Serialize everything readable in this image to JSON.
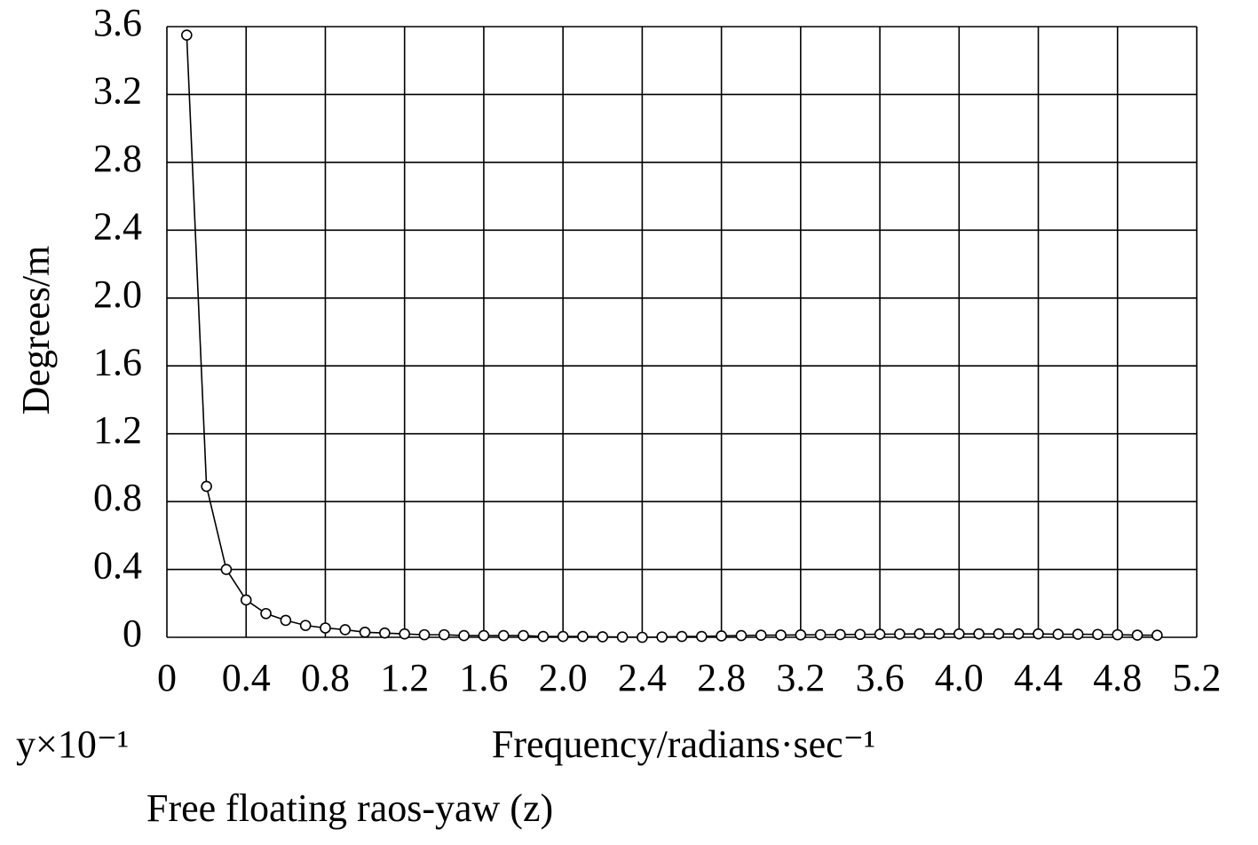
{
  "chart_data": {
    "type": "line",
    "ylabel": "Degrees/m",
    "xlabel": "Frequency/radians·sec⁻¹",
    "scale_note": "y×10⁻¹",
    "caption": "Free floating raos-yaw (z)",
    "x": [
      0.1,
      0.2,
      0.3,
      0.4,
      0.5,
      0.6,
      0.7,
      0.8,
      0.9,
      1.0,
      1.1,
      1.2,
      1.3,
      1.4,
      1.5,
      1.6,
      1.7,
      1.8,
      1.9,
      2.0,
      2.1,
      2.2,
      2.3,
      2.4,
      2.5,
      2.6,
      2.7,
      2.8,
      2.9,
      3.0,
      3.1,
      3.2,
      3.3,
      3.4,
      3.5,
      3.6,
      3.7,
      3.8,
      3.9,
      4.0,
      4.1,
      4.2,
      4.3,
      4.4,
      4.5,
      4.6,
      4.7,
      4.8,
      4.9,
      5.0
    ],
    "series": [
      {
        "color": "#000000",
        "values": [
          3.55,
          0.89,
          0.4,
          0.22,
          0.14,
          0.1,
          0.07,
          0.055,
          0.045,
          0.03,
          0.025,
          0.02,
          0.015,
          0.015,
          0.01,
          0.01,
          0.01,
          0.01,
          0.005,
          0.005,
          0.005,
          0.003,
          0.002,
          0.0,
          0.002,
          0.005,
          0.005,
          0.008,
          0.01,
          0.012,
          0.013,
          0.014,
          0.015,
          0.016,
          0.017,
          0.018,
          0.019,
          0.02,
          0.02,
          0.02,
          0.02,
          0.02,
          0.02,
          0.02,
          0.018,
          0.018,
          0.017,
          0.015,
          0.013,
          0.012
        ]
      }
    ],
    "xlim": [
      0,
      5.2
    ],
    "ylim": [
      0,
      3.6
    ],
    "xticks": [
      0,
      0.4,
      0.8,
      1.2,
      1.6,
      {
        "value": 2,
        "label": "2.0"
      },
      2.4,
      2.8,
      3.2,
      3.6,
      {
        "value": 4,
        "label": "4.0"
      },
      4.4,
      4.8,
      5.2
    ],
    "yticks": [
      0,
      0.4,
      0.8,
      1.2,
      1.6,
      {
        "value": 2,
        "label": "2.0"
      },
      2.4,
      2.8,
      3.2,
      3.6
    ],
    "grid": true
  }
}
